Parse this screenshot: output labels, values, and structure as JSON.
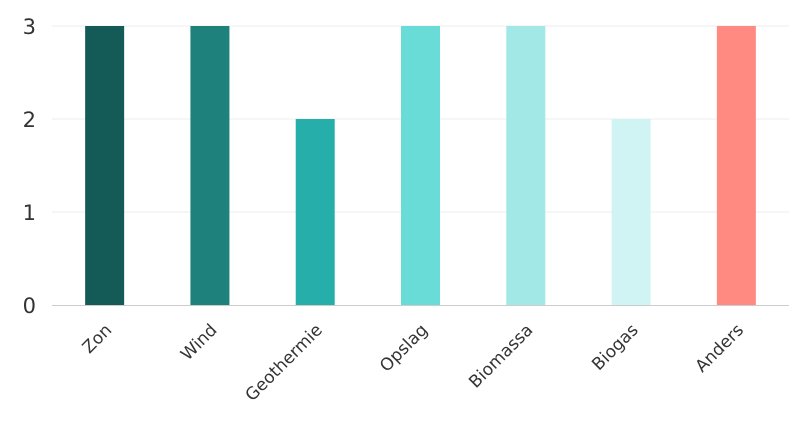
{
  "chart_data": {
    "type": "bar",
    "title": "",
    "xlabel": "",
    "ylabel": "",
    "categories": [
      "Zon",
      "Wind",
      "Geothermie",
      "Opslag",
      "Biomassa",
      "Biogas",
      "Anders"
    ],
    "values": [
      3,
      3,
      2,
      3,
      3,
      2,
      3
    ],
    "colors": [
      "#145a56",
      "#1e817b",
      "#26aeaa",
      "#69dcd8",
      "#a1e8e6",
      "#d0f4f3",
      "#ff8a82"
    ],
    "ylim": [
      0,
      3
    ],
    "yticks": [
      "0",
      "1",
      "2",
      "3"
    ],
    "grid": true,
    "legend": "none"
  }
}
